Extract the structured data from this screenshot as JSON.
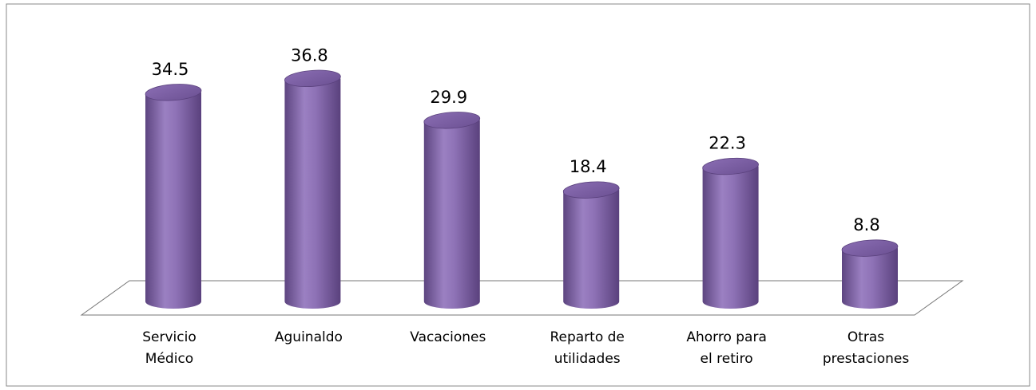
{
  "chart_data": {
    "type": "bar",
    "shape": "cylinder",
    "categories": [
      "Servicio Médico",
      "Aguinaldo",
      "Vacaciones",
      "Reparto de utilidades",
      "Ahorro para el retiro",
      "Otras prestaciones"
    ],
    "values": [
      34.5,
      36.8,
      29.9,
      18.4,
      22.3,
      8.8
    ],
    "color": "#8064a2"
  }
}
